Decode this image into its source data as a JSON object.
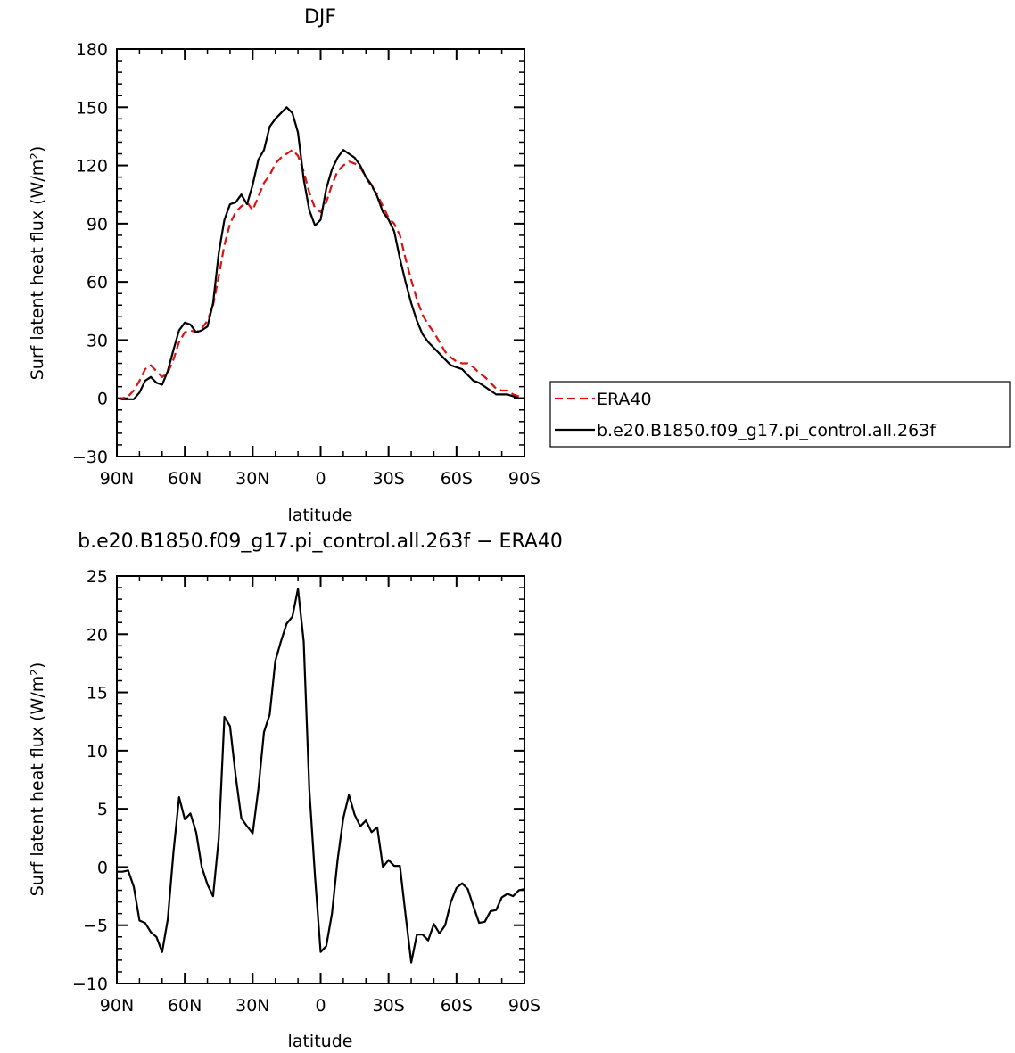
{
  "chart_data": [
    {
      "type": "line",
      "title": "DJF",
      "xlabel": "latitude",
      "ylabel": "Surf latent heat flux (W/m²)",
      "ylim": [
        -30,
        180
      ],
      "yticks": [
        -30,
        0,
        30,
        60,
        90,
        120,
        150,
        180
      ],
      "xlim": [
        90,
        -90
      ],
      "xticks": [
        {
          "value": 90,
          "label": "90N"
        },
        {
          "value": 60,
          "label": "60N"
        },
        {
          "value": 30,
          "label": "30N"
        },
        {
          "value": 0,
          "label": "0"
        },
        {
          "value": -30,
          "label": "30S"
        },
        {
          "value": -60,
          "label": "60S"
        },
        {
          "value": -90,
          "label": "90S"
        }
      ],
      "legend_position": "right",
      "x": [
        90,
        87.5,
        85,
        82.5,
        80,
        77.5,
        75,
        72.5,
        70,
        67.5,
        65,
        62.5,
        60,
        57.5,
        55,
        52.5,
        50,
        47.5,
        45,
        42.5,
        40,
        37.5,
        35,
        32.5,
        30,
        27.5,
        25,
        22.5,
        20,
        17.5,
        15,
        12.5,
        10,
        7.5,
        5,
        2.5,
        0,
        -2.5,
        -5,
        -7.5,
        -10,
        -12.5,
        -15,
        -17.5,
        -20,
        -22.5,
        -25,
        -27.5,
        -30,
        -32.5,
        -35,
        -37.5,
        -40,
        -42.5,
        -45,
        -47.5,
        -50,
        -52.5,
        -55,
        -57.5,
        -60,
        -62.5,
        -65,
        -67.5,
        -70,
        -72.5,
        -75,
        -77.5,
        -80,
        -82.5,
        -85,
        -87.5,
        -90
      ],
      "series": [
        {
          "name": "ERA40",
          "color": "#e01010",
          "dash": true,
          "values": [
            0,
            0,
            1,
            4,
            9,
            15,
            17,
            14,
            11,
            13,
            20,
            29,
            34,
            35,
            34,
            36,
            40,
            48,
            63,
            79,
            90,
            96,
            99,
            101,
            97,
            104,
            111,
            115,
            121,
            124,
            126,
            128,
            125,
            117,
            106,
            98,
            96,
            101,
            110,
            117,
            120,
            122,
            121,
            119,
            114,
            109,
            105,
            99,
            93,
            90,
            84,
            72,
            61,
            51,
            43,
            38,
            34,
            29,
            24,
            21,
            19,
            18,
            18,
            16,
            13,
            11,
            8,
            5,
            4,
            4,
            2,
            1,
            0
          ]
        },
        {
          "name": "b.e20.B1850.f09_g17.pi_control.all.263f",
          "color": "#000000",
          "dash": false,
          "values": [
            0,
            -0.5,
            -0.5,
            -0.5,
            3,
            9,
            11,
            8,
            7,
            14,
            25,
            35,
            39,
            38,
            34,
            35,
            37,
            49,
            75,
            92,
            100,
            101,
            105,
            100,
            110,
            123,
            128,
            140,
            144,
            147,
            150,
            147,
            137,
            113,
            97,
            89,
            92,
            108,
            118,
            124,
            128,
            126,
            124,
            120,
            114,
            110,
            104,
            96,
            92,
            86,
            72,
            60,
            49,
            40,
            33,
            29,
            26,
            23,
            20,
            17,
            16,
            15,
            12,
            9,
            8,
            6,
            4,
            2,
            2,
            2,
            1,
            0,
            0
          ]
        }
      ]
    },
    {
      "type": "line",
      "title": "b.e20.B1850.f09_g17.pi_control.all.263f  −  ERA40",
      "xlabel": "latitude",
      "ylabel": "Surf latent heat flux (W/m²)",
      "ylim": [
        -10,
        25
      ],
      "yticks": [
        -10,
        -5,
        0,
        5,
        10,
        15,
        20,
        25
      ],
      "xlim": [
        90,
        -90
      ],
      "xticks": [
        {
          "value": 90,
          "label": "90N"
        },
        {
          "value": 60,
          "label": "60N"
        },
        {
          "value": 30,
          "label": "30N"
        },
        {
          "value": 0,
          "label": "0"
        },
        {
          "value": -30,
          "label": "30S"
        },
        {
          "value": -60,
          "label": "60S"
        },
        {
          "value": -90,
          "label": "90S"
        }
      ],
      "x": [
        90,
        87.5,
        85,
        82.5,
        80,
        77.5,
        75,
        72.5,
        70,
        67.5,
        65,
        62.5,
        60,
        57.5,
        55,
        52.5,
        50,
        47.5,
        45,
        42.5,
        40,
        37.5,
        35,
        32.5,
        30,
        27.5,
        25,
        22.5,
        20,
        17.5,
        15,
        12.5,
        10,
        7.5,
        5,
        2.5,
        0,
        -2.5,
        -5,
        -7.5,
        -10,
        -12.5,
        -15,
        -17.5,
        -20,
        -22.5,
        -25,
        -27.5,
        -30,
        -32.5,
        -35,
        -37.5,
        -40,
        -42.5,
        -45,
        -47.5,
        -50,
        -52.5,
        -55,
        -57.5,
        -60,
        -62.5,
        -65,
        -67.5,
        -70,
        -72.5,
        -75,
        -77.5,
        -80,
        -82.5,
        -85,
        -87.5,
        -90
      ],
      "series": [
        {
          "color": "#000000",
          "dash": false,
          "values": [
            -0.4,
            -0.4,
            -0.3,
            -1.7,
            -4.6,
            -4.8,
            -5.6,
            -6.0,
            -7.3,
            -4.5,
            1.3,
            6.0,
            4.1,
            4.6,
            3.0,
            0.0,
            -1.5,
            -2.5,
            2.5,
            12.9,
            12.1,
            7.8,
            4.2,
            3.5,
            2.9,
            6.7,
            11.6,
            13.1,
            17.7,
            19.4,
            20.9,
            21.5,
            23.9,
            19.4,
            6.7,
            -0.8,
            -7.3,
            -6.8,
            -4.0,
            0.6,
            4.2,
            6.2,
            4.5,
            3.5,
            4.0,
            3.0,
            3.4,
            0.0,
            0.6,
            0.1,
            0.1,
            -4.1,
            -8.2,
            -5.8,
            -5.8,
            -6.3,
            -4.9,
            -5.7,
            -5.0,
            -3.0,
            -1.8,
            -1.4,
            -1.9,
            -3.4,
            -4.8,
            -4.7,
            -3.8,
            -3.7,
            -2.6,
            -2.3,
            -2.5,
            -2.0,
            -1.9
          ]
        }
      ]
    }
  ]
}
